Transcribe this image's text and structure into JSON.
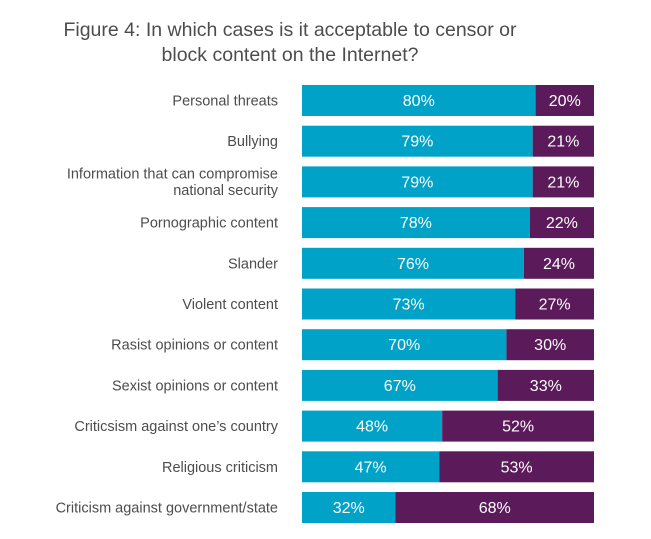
{
  "chart_data": {
    "type": "bar",
    "orientation": "horizontal",
    "stacked": true,
    "title_lines": [
      "Figure 4: In which cases is it acceptable to censor or",
      "block content on the Internet?"
    ],
    "categories": [
      [
        "Personal threats"
      ],
      [
        "Bullying"
      ],
      [
        "Information that can compromise",
        "national security"
      ],
      [
        "Pornographic content"
      ],
      [
        "Slander"
      ],
      [
        "Violent content"
      ],
      [
        "Rasist opinions or content"
      ],
      [
        "Sexist opinions or content"
      ],
      [
        "Criticsism against one’s country"
      ],
      [
        "Religious criticism"
      ],
      [
        "Criticism against government/state"
      ]
    ],
    "series": [
      {
        "values": [
          80,
          79,
          79,
          78,
          76,
          73,
          70,
          67,
          48,
          47,
          32
        ],
        "color": "#00a3c7"
      },
      {
        "values": [
          20,
          21,
          21,
          22,
          24,
          27,
          30,
          33,
          52,
          53,
          68
        ],
        "color": "#5b1a5a"
      }
    ],
    "value_suffix": "%",
    "xlim": [
      0,
      100
    ],
    "grid": false,
    "legend": "none"
  }
}
